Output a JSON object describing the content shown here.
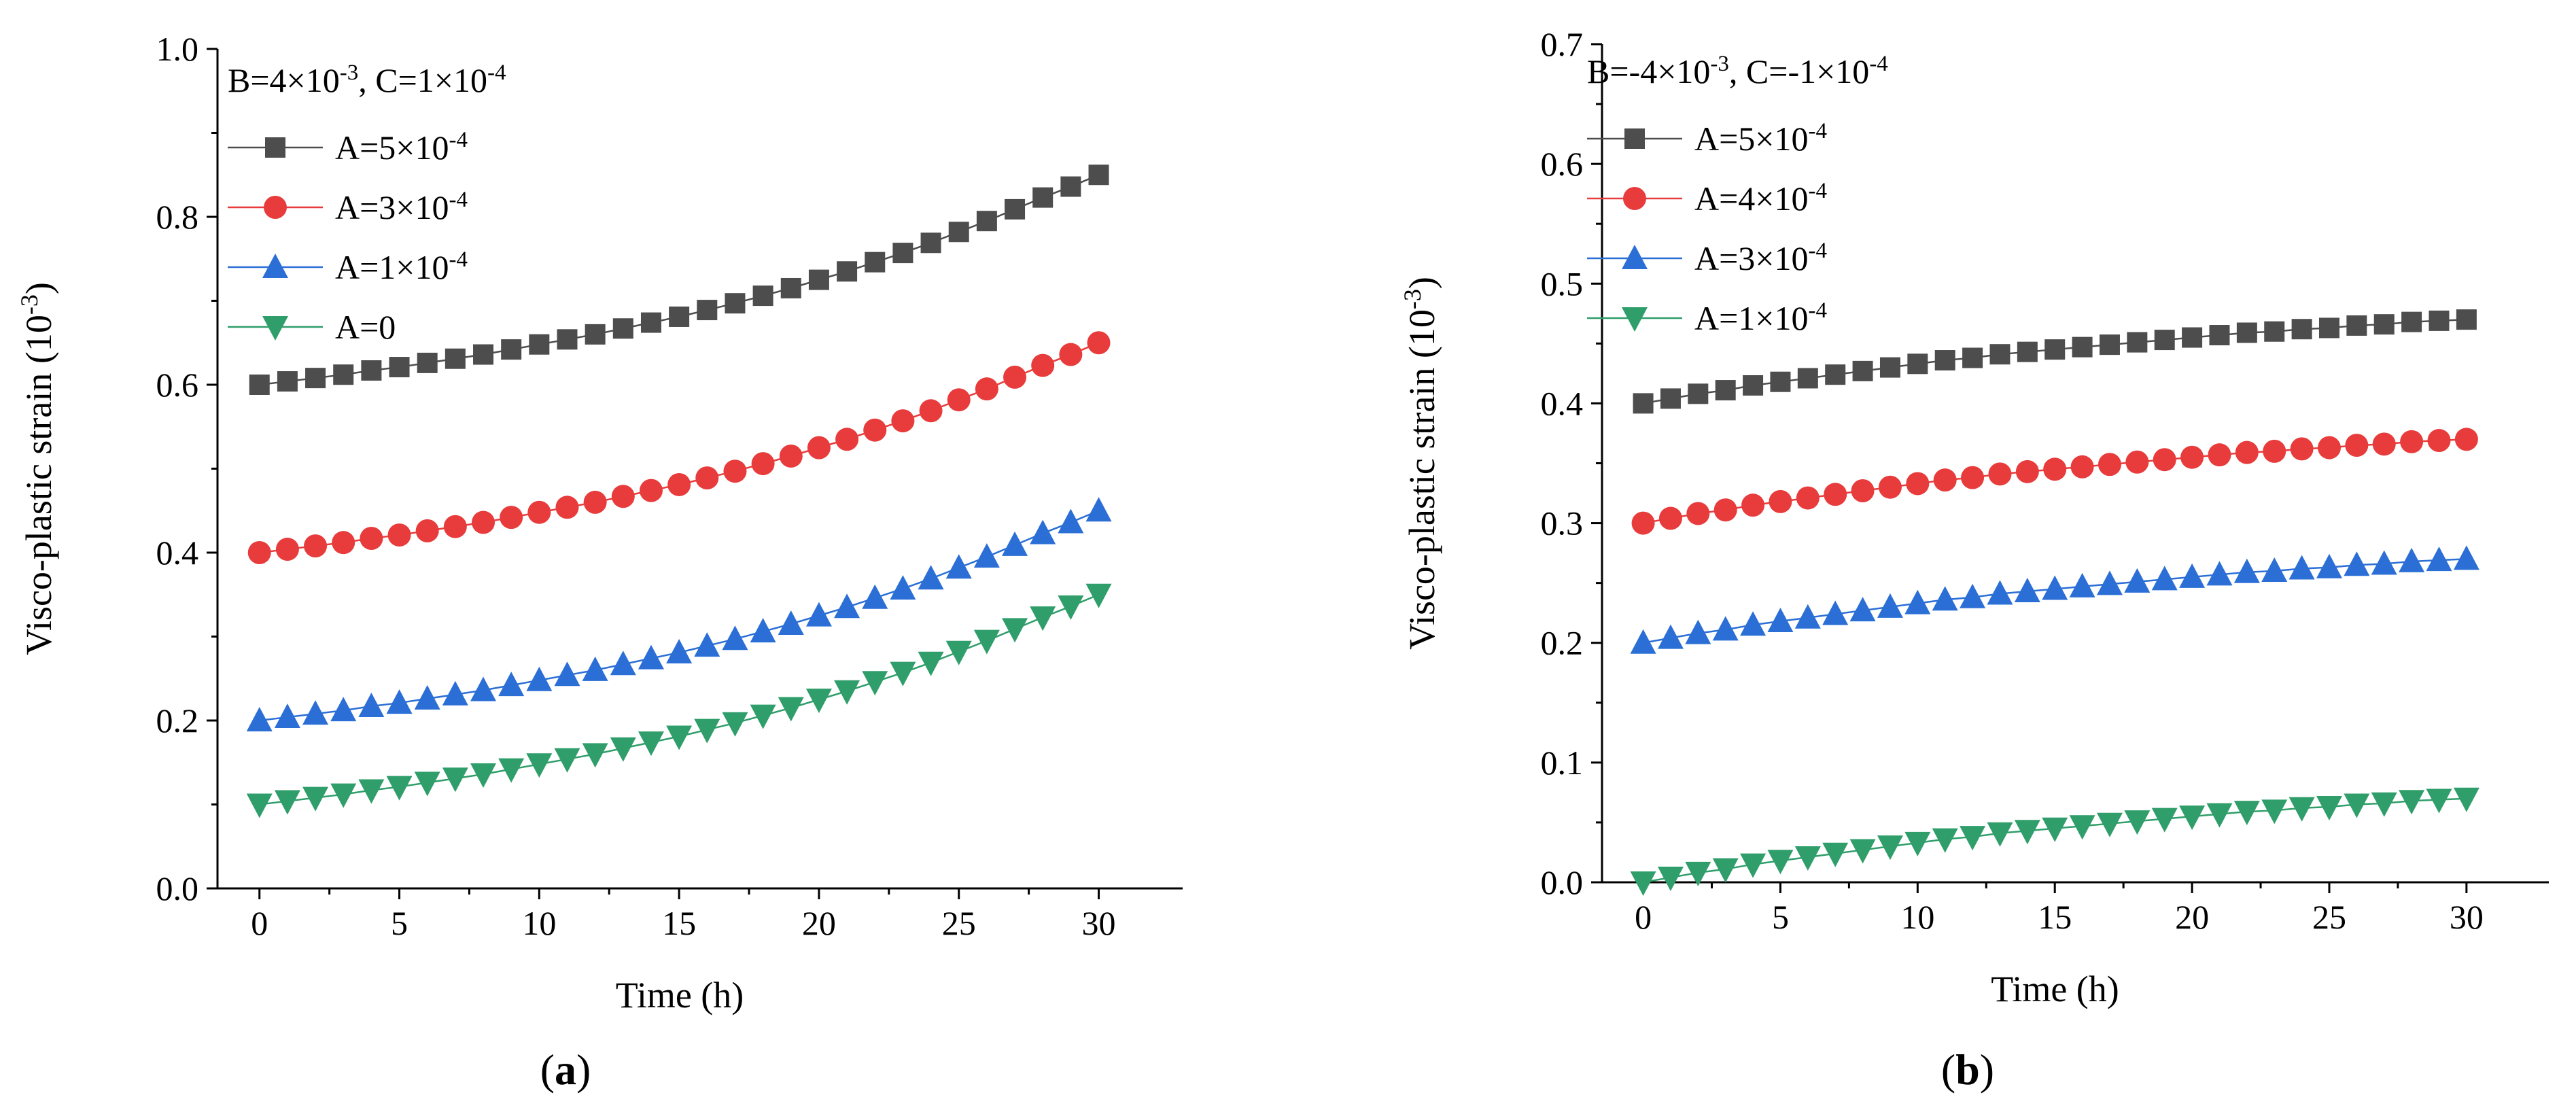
{
  "chart_data": [
    {
      "type": "line",
      "panel_label": "a",
      "xlabel": "Time (h)",
      "ylabel": "Visco-plastic strain (10",
      "ylabel_exp": "-3",
      "ylabel_close": ")",
      "xlim": [
        -1.5,
        33
      ],
      "ylim": [
        0,
        1.0
      ],
      "xticks": [
        0,
        5,
        10,
        15,
        20,
        25,
        30
      ],
      "xtick_labels": [
        "0",
        "5",
        "10",
        "15",
        "20",
        "25",
        "30"
      ],
      "yticks": [
        0,
        0.2,
        0.4,
        0.6,
        0.8,
        1.0
      ],
      "ytick_labels": [
        "0.0",
        "0.2",
        "0.4",
        "0.6",
        "0.8",
        "1.0"
      ],
      "legend_title": "B=4×10-3, C=1×10-4",
      "legend_title_parts": [
        "B=4×10",
        "-3",
        ", C=1×10",
        "-4"
      ],
      "legend_position": "top-left",
      "x": [
        0,
        1,
        2,
        3,
        4,
        5,
        6,
        7,
        8,
        9,
        10,
        11,
        12,
        13,
        14,
        15,
        16,
        17,
        18,
        19,
        20,
        21,
        22,
        23,
        24,
        25,
        26,
        27,
        28,
        29,
        30
      ],
      "series": [
        {
          "name": "A=5×10-4",
          "label_parts": [
            "A=5×10",
            "-4"
          ],
          "color": "#4d4d4d",
          "marker": "square",
          "values": [
            0.6,
            0.604,
            0.608,
            0.612,
            0.617,
            0.621,
            0.626,
            0.631,
            0.636,
            0.642,
            0.648,
            0.654,
            0.66,
            0.667,
            0.674,
            0.681,
            0.689,
            0.697,
            0.706,
            0.715,
            0.725,
            0.735,
            0.746,
            0.757,
            0.769,
            0.782,
            0.795,
            0.809,
            0.823,
            0.836,
            0.85
          ]
        },
        {
          "name": "A=3×10-4",
          "label_parts": [
            "A=3×10",
            "-4"
          ],
          "color": "#e83b3b",
          "marker": "circle",
          "values": [
            0.4,
            0.404,
            0.408,
            0.412,
            0.417,
            0.421,
            0.426,
            0.431,
            0.436,
            0.442,
            0.448,
            0.454,
            0.46,
            0.467,
            0.474,
            0.481,
            0.489,
            0.497,
            0.506,
            0.515,
            0.525,
            0.535,
            0.546,
            0.557,
            0.569,
            0.582,
            0.595,
            0.609,
            0.623,
            0.636,
            0.65
          ]
        },
        {
          "name": "A=1×10-4",
          "label_parts": [
            "A=1×10",
            "-4"
          ],
          "color": "#2b6fd6",
          "marker": "triangle-up",
          "values": [
            0.2,
            0.204,
            0.208,
            0.212,
            0.217,
            0.221,
            0.226,
            0.231,
            0.236,
            0.242,
            0.248,
            0.254,
            0.26,
            0.267,
            0.274,
            0.281,
            0.289,
            0.297,
            0.306,
            0.315,
            0.325,
            0.335,
            0.346,
            0.357,
            0.369,
            0.382,
            0.395,
            0.409,
            0.423,
            0.436,
            0.45
          ]
        },
        {
          "name": "A=0",
          "label_parts": [
            "A=0",
            ""
          ],
          "color": "#2f9e6a",
          "marker": "triangle-down",
          "values": [
            0.1,
            0.104,
            0.108,
            0.112,
            0.117,
            0.121,
            0.126,
            0.131,
            0.136,
            0.142,
            0.148,
            0.154,
            0.16,
            0.167,
            0.174,
            0.181,
            0.189,
            0.197,
            0.206,
            0.215,
            0.225,
            0.235,
            0.246,
            0.257,
            0.269,
            0.282,
            0.295,
            0.309,
            0.323,
            0.336,
            0.35
          ]
        }
      ]
    },
    {
      "type": "line",
      "panel_label": "b",
      "xlabel": "Time (h)",
      "ylabel": "Visco-plastic strain (10",
      "ylabel_exp": "-3",
      "ylabel_close": ")",
      "xlim": [
        -1.5,
        33
      ],
      "ylim": [
        0,
        0.7
      ],
      "xticks": [
        0,
        5,
        10,
        15,
        20,
        25,
        30
      ],
      "xtick_labels": [
        "0",
        "5",
        "10",
        "15",
        "20",
        "25",
        "30"
      ],
      "yticks": [
        0,
        0.1,
        0.2,
        0.3,
        0.4,
        0.5,
        0.6,
        0.7
      ],
      "ytick_labels": [
        "0.0",
        "0.1",
        "0.2",
        "0.3",
        "0.4",
        "0.5",
        "0.6",
        "0.7"
      ],
      "legend_title": "B=-4×10-3, C=-1×10-4",
      "legend_title_parts": [
        "B=-4×10",
        "-3",
        ", C=-1×10",
        "-4"
      ],
      "legend_position": "top-left",
      "x": [
        0,
        1,
        2,
        3,
        4,
        5,
        6,
        7,
        8,
        9,
        10,
        11,
        12,
        13,
        14,
        15,
        16,
        17,
        18,
        19,
        20,
        21,
        22,
        23,
        24,
        25,
        26,
        27,
        28,
        29,
        30
      ],
      "series": [
        {
          "name": "A=5×10-4",
          "label_parts": [
            "A=5×10",
            "-4"
          ],
          "color": "#4d4d4d",
          "marker": "square",
          "values": [
            0.4,
            0.404,
            0.408,
            0.411,
            0.415,
            0.418,
            0.421,
            0.424,
            0.427,
            0.43,
            0.433,
            0.436,
            0.438,
            0.441,
            0.443,
            0.445,
            0.447,
            0.449,
            0.451,
            0.453,
            0.455,
            0.457,
            0.459,
            0.46,
            0.462,
            0.463,
            0.465,
            0.466,
            0.468,
            0.469,
            0.47
          ]
        },
        {
          "name": "A=4×10-4",
          "label_parts": [
            "A=4×10",
            "-4"
          ],
          "color": "#e83b3b",
          "marker": "circle",
          "values": [
            0.3,
            0.304,
            0.308,
            0.311,
            0.315,
            0.318,
            0.321,
            0.324,
            0.327,
            0.33,
            0.333,
            0.336,
            0.338,
            0.341,
            0.343,
            0.345,
            0.347,
            0.349,
            0.351,
            0.353,
            0.355,
            0.357,
            0.359,
            0.36,
            0.362,
            0.363,
            0.365,
            0.366,
            0.368,
            0.369,
            0.37
          ]
        },
        {
          "name": "A=3×10-4",
          "label_parts": [
            "A=3×10",
            "-4"
          ],
          "color": "#2b6fd6",
          "marker": "triangle-up",
          "values": [
            0.2,
            0.204,
            0.208,
            0.211,
            0.215,
            0.218,
            0.221,
            0.224,
            0.227,
            0.23,
            0.233,
            0.236,
            0.238,
            0.241,
            0.243,
            0.245,
            0.247,
            0.249,
            0.251,
            0.253,
            0.255,
            0.257,
            0.259,
            0.26,
            0.262,
            0.263,
            0.265,
            0.266,
            0.268,
            0.269,
            0.27
          ]
        },
        {
          "name": "A=1×10-4",
          "label_parts": [
            "A=1×10",
            "-4"
          ],
          "color": "#2f9e6a",
          "marker": "triangle-down",
          "values": [
            0.0,
            0.004,
            0.008,
            0.011,
            0.015,
            0.018,
            0.021,
            0.024,
            0.027,
            0.03,
            0.033,
            0.036,
            0.038,
            0.041,
            0.043,
            0.045,
            0.047,
            0.049,
            0.051,
            0.053,
            0.055,
            0.057,
            0.059,
            0.06,
            0.062,
            0.063,
            0.065,
            0.066,
            0.068,
            0.069,
            0.07
          ]
        }
      ]
    }
  ]
}
